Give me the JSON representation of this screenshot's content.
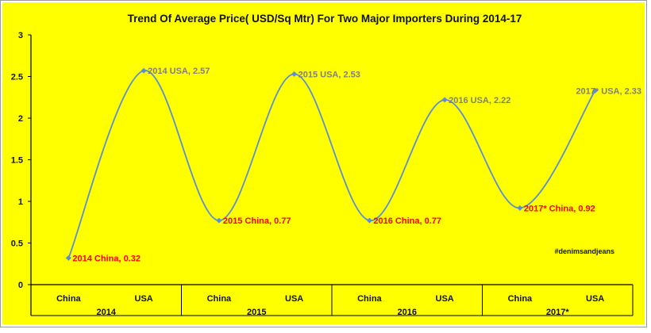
{
  "chart_data": {
    "type": "line",
    "title": "Trend Of Average Price( USD/Sq Mtr) For Two Major Importers During 2014-17",
    "xlabel": "",
    "ylabel": "",
    "ylim": [
      0,
      3
    ],
    "yticks": [
      0,
      0.5,
      1,
      1.5,
      2,
      2.5,
      3
    ],
    "grid": false,
    "line_style": "smooth",
    "groups": [
      {
        "year": "2014",
        "categories": [
          "China",
          "USA"
        ]
      },
      {
        "year": "2015",
        "categories": [
          "China",
          "USA"
        ]
      },
      {
        "year": "2016",
        "categories": [
          "China",
          "USA"
        ]
      },
      {
        "year": "2017*",
        "categories": [
          "China",
          "USA"
        ]
      }
    ],
    "points": [
      {
        "year": "2014",
        "category": "China",
        "value": 0.32,
        "label": "2014 China, 0.32"
      },
      {
        "year": "2014",
        "category": "USA",
        "value": 2.57,
        "label": "2014 USA, 2.57"
      },
      {
        "year": "2015",
        "category": "China",
        "value": 0.77,
        "label": "2015 China, 0.77"
      },
      {
        "year": "2015",
        "category": "USA",
        "value": 2.53,
        "label": "2015 USA, 2.53"
      },
      {
        "year": "2016",
        "category": "China",
        "value": 0.77,
        "label": "2016 China, 0.77"
      },
      {
        "year": "2016",
        "category": "USA",
        "value": 2.22,
        "label": "2016 USA, 2.22"
      },
      {
        "year": "2017*",
        "category": "China",
        "value": 0.92,
        "label": "2017* China, 0.92"
      },
      {
        "year": "2017*",
        "category": "USA",
        "value": 2.33,
        "label": "2017* USA, 2.33"
      }
    ],
    "annotation": "#denimsandjeans",
    "colors": {
      "background": "#ffff00",
      "line": "#5b8ed6",
      "china_label": "#ff0000",
      "usa_label": "#7f7f7f",
      "axis": "#000000"
    }
  }
}
